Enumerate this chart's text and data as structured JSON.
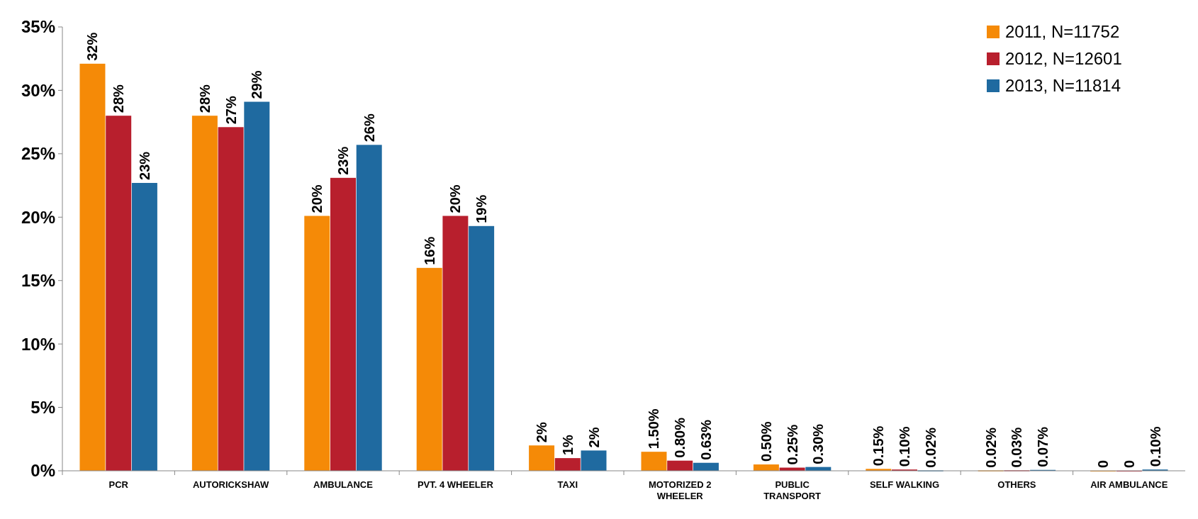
{
  "chart_data": {
    "type": "bar",
    "categories": [
      "PCR",
      "AUTORICKSHAW",
      "AMBULANCE",
      "PVT. 4 WHEELER",
      "TAXI",
      "MOTORIZED 2 WHEELER",
      "PUBLIC TRANSPORT",
      "SELF WALKING",
      "OTHERS",
      "AIR AMBULANCE"
    ],
    "series": [
      {
        "name": "2011, N=11752",
        "color": "#f58a07",
        "values": [
          32.1,
          28,
          20.1,
          16,
          2,
          1.5,
          0.5,
          0.15,
          0.02,
          0
        ],
        "value_labels": [
          "32%",
          "28%",
          "20%",
          "16%",
          "2%",
          "1.50%",
          "0.50%",
          "0.15%",
          "0.02%",
          "0"
        ]
      },
      {
        "name": "2012, N=12601",
        "color": "#b81f2d",
        "values": [
          28,
          27.1,
          23.1,
          20.1,
          1,
          0.8,
          0.25,
          0.1,
          0.03,
          0
        ],
        "value_labels": [
          "28%",
          "27%",
          "23%",
          "20%",
          "1%",
          "0.80%",
          "0.25%",
          "0.10%",
          "0.03%",
          "0"
        ]
      },
      {
        "name": "2013, N=11814",
        "color": "#1f6aa0",
        "values": [
          22.7,
          29.1,
          25.7,
          19.3,
          1.6,
          0.63,
          0.3,
          0.02,
          0.07,
          0.1
        ],
        "value_labels": [
          "23%",
          "29%",
          "26%",
          "19%",
          "2%",
          "0.63%",
          "0.30%",
          "0.02%",
          "0.07%",
          "0.10%"
        ]
      }
    ],
    "ylim": [
      0,
      35
    ],
    "yticks": [
      {
        "value": 0,
        "label": "0%"
      },
      {
        "value": 5,
        "label": "5%"
      },
      {
        "value": 10,
        "label": "10%"
      },
      {
        "value": 15,
        "label": "15%"
      },
      {
        "value": 20,
        "label": "20%"
      },
      {
        "value": 25,
        "label": "25%"
      },
      {
        "value": 30,
        "label": "30%"
      },
      {
        "value": 35,
        "label": "35%"
      }
    ],
    "legend": "top right",
    "grid": false
  }
}
